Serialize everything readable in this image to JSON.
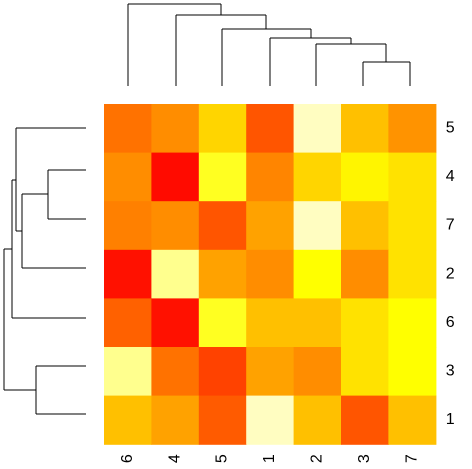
{
  "chart_data": {
    "type": "heatmap",
    "title": "",
    "xlabel": "",
    "ylabel": "",
    "color_scale": [
      "#ff0000",
      "#ff4500",
      "#ff6a00",
      "#ff8c00",
      "#ffb000",
      "#ffd700",
      "#ffff00",
      "#ffff8a",
      "#fffbe6"
    ],
    "columns": [
      "6",
      "4",
      "5",
      "1",
      "2",
      "3",
      "7"
    ],
    "rows": [
      "5",
      "4",
      "7",
      "2",
      "6",
      "3",
      "1"
    ],
    "values": [
      [
        0.28,
        0.38,
        0.62,
        0.18,
        0.95,
        0.55,
        0.4
      ],
      [
        0.38,
        0.02,
        0.78,
        0.35,
        0.62,
        0.72,
        0.66
      ],
      [
        0.33,
        0.38,
        0.18,
        0.45,
        0.95,
        0.55,
        0.66
      ],
      [
        0.03,
        0.88,
        0.45,
        0.38,
        0.75,
        0.38,
        0.66
      ],
      [
        0.22,
        0.03,
        0.78,
        0.55,
        0.55,
        0.66,
        0.75
      ],
      [
        0.88,
        0.28,
        0.12,
        0.45,
        0.38,
        0.66,
        0.75
      ],
      [
        0.55,
        0.45,
        0.2,
        0.95,
        0.55,
        0.18,
        0.55
      ]
    ],
    "legend": "none",
    "grid": false
  }
}
